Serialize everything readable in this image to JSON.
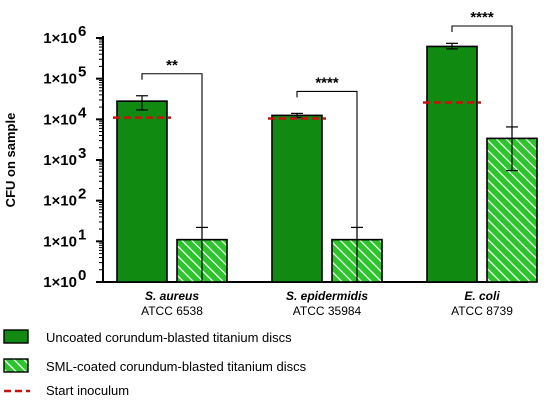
{
  "chart_data": {
    "type": "bar",
    "yscale": "log",
    "ylabel": "CFU on sample",
    "ylim": [
      1,
      1000000
    ],
    "yticks": [
      {
        "base": "1×10",
        "exp": "0"
      },
      {
        "base": "1×10",
        "exp": "1"
      },
      {
        "base": "1×10",
        "exp": "2"
      },
      {
        "base": "1×10",
        "exp": "3"
      },
      {
        "base": "1×10",
        "exp": "4"
      },
      {
        "base": "1×10",
        "exp": "5"
      },
      {
        "base": "1×10",
        "exp": "6"
      }
    ],
    "categories": [
      {
        "name": "S. aureus",
        "strain": "ATCC 6538"
      },
      {
        "name": "S.  epidermidis",
        "strain": "ATCC 35984"
      },
      {
        "name": "E. coli",
        "strain": "ATCC 8739"
      }
    ],
    "series": [
      {
        "name": "Uncoated corundum-blasted titanium discs",
        "color": "#118a11",
        "pattern": "solid",
        "values": [
          28000,
          12500,
          620000
        ],
        "error_low": [
          17000,
          11000,
          540000
        ],
        "error_high": [
          38000,
          14000,
          740000
        ]
      },
      {
        "name": "SML-coated corundum-blasted titanium discs",
        "color": "#2ec42e",
        "pattern": "hatched",
        "values": [
          11,
          11,
          3400
        ],
        "error_low": [
          1,
          1,
          550
        ],
        "error_high": [
          22,
          22,
          6500
        ]
      }
    ],
    "reference": {
      "name": "Start inoculum",
      "color": "#cc1010",
      "values": [
        11000,
        10500,
        26000
      ]
    },
    "significance": [
      "**",
      "****",
      "****"
    ],
    "legend_position": "bottom"
  }
}
